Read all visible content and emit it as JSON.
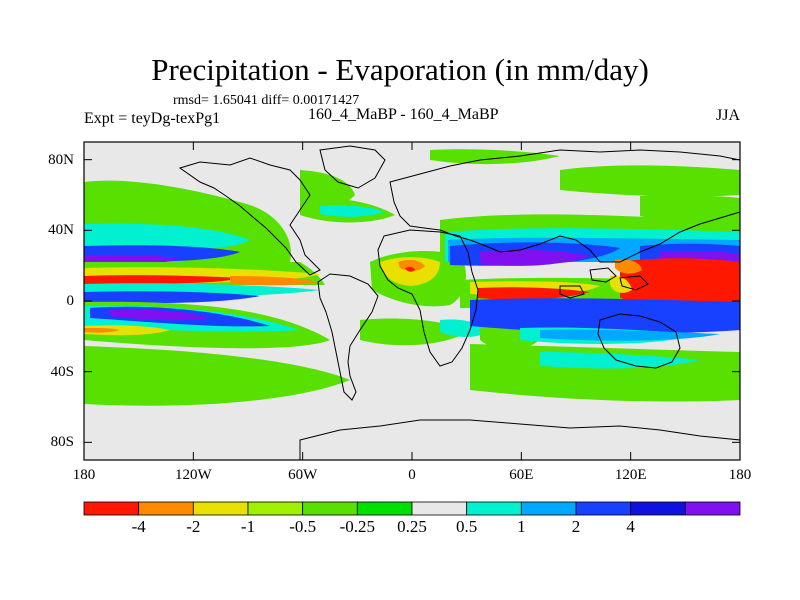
{
  "title": "Precipitation - Evaporation (in mm/day)",
  "stats": "rmsd= 1.65041 diff= 0.00171427",
  "experiment": "Expt = teyDg-texPg1",
  "comparison": "160_4_MaBP - 160_4_MaBP",
  "season": "JJA",
  "map_data": {
    "projection": "cylindrical-equidistant",
    "lon_range": [
      -180,
      180
    ],
    "lat_range": [
      -90,
      90
    ],
    "y_ticks": [
      {
        "lat": 80,
        "label": "80N"
      },
      {
        "lat": 40,
        "label": "40N"
      },
      {
        "lat": 0,
        "label": "0"
      },
      {
        "lat": -40,
        "label": "40S"
      },
      {
        "lat": -80,
        "label": "80S"
      }
    ],
    "x_ticks": [
      {
        "lon": -180,
        "label": "180"
      },
      {
        "lon": -120,
        "label": "120W"
      },
      {
        "lon": -60,
        "label": "60W"
      },
      {
        "lon": 0,
        "label": "0"
      },
      {
        "lon": 60,
        "label": "60E"
      },
      {
        "lon": 120,
        "label": "120E"
      },
      {
        "lon": 180,
        "label": "180"
      }
    ]
  },
  "colorbar": {
    "levels": [
      "-4",
      "-2",
      "-1",
      "-0.5",
      "-0.25",
      "0.25",
      "0.5",
      "1",
      "2",
      "4"
    ],
    "colors": [
      "#ff1800",
      "#ff8a00",
      "#e8e000",
      "#a0f000",
      "#58e000",
      "#00e000",
      "#e8e8e8",
      "#00f0d0",
      "#00a8ff",
      "#1840ff",
      "#1010e0",
      "#8010f0"
    ]
  }
}
